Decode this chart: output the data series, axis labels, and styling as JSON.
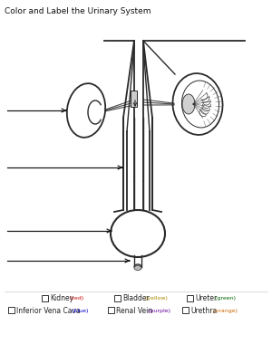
{
  "title": "Color and Label the Urinary System",
  "title_fontsize": 6.5,
  "bg_color": "#ffffff",
  "line_color": "#2a2a2a",
  "lw": 1.0,
  "legend_items": [
    {
      "label": "Kidney",
      "color_word": "red",
      "color_hex": "#cc0000"
    },
    {
      "label": "Bladder",
      "color_word": "yellow",
      "color_hex": "#aa8800"
    },
    {
      "label": "Ureter",
      "color_word": "green",
      "color_hex": "#006600"
    },
    {
      "label": "Inferior Vena Cava",
      "color_word": "blue",
      "color_hex": "#0000cc"
    },
    {
      "label": "Renal Vein",
      "color_word": "purple",
      "color_hex": "#660099"
    },
    {
      "label": "Urethra",
      "color_word": "orange",
      "color_hex": "#cc6600"
    }
  ],
  "arrow_color": "#111111"
}
